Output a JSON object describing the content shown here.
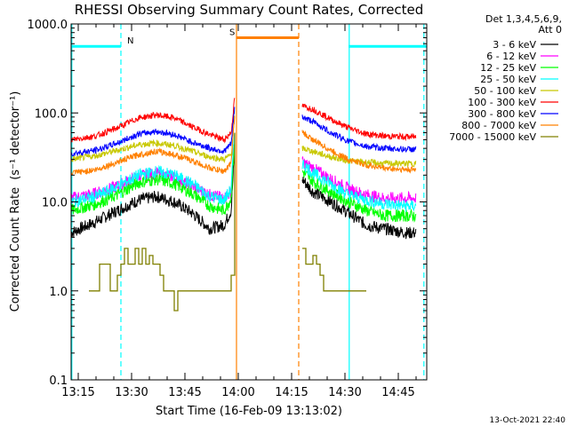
{
  "chart_data": {
    "type": "line",
    "title": "RHESSI Observing Summary Count Rates, Corrected",
    "xlabel": "Start Time (16-Feb-09 13:13:02)",
    "ylabel": "Corrected Count Rate",
    "ylabel_units": "(s⁻¹ detector⁻¹)",
    "yscale": "log",
    "ylim": [
      0.1,
      1000
    ],
    "yticks": [
      0.1,
      1,
      10,
      100,
      1000
    ],
    "ytick_labels": [
      "0.1",
      "1.0",
      "10.0",
      "100.0",
      "1000.0"
    ],
    "xlim_min": [
      793,
      893
    ],
    "xticks_min": [
      795,
      810,
      825,
      840,
      855,
      870,
      885
    ],
    "xtick_labels": [
      "13:15",
      "13:30",
      "13:45",
      "14:00",
      "14:15",
      "14:30",
      "14:45"
    ],
    "legend_header": [
      "Det 1,3,4,5,6,9,",
      "Att 0"
    ],
    "series": [
      {
        "name": "3 - 6 keV",
        "color": "#000000",
        "before": [
          [
            793,
            4.5
          ],
          [
            800,
            6
          ],
          [
            806,
            8
          ],
          [
            812,
            10.5
          ],
          [
            817,
            11.5
          ],
          [
            822,
            10
          ],
          [
            827,
            7.5
          ],
          [
            832,
            5
          ],
          [
            836,
            5.5
          ],
          [
            838,
            8
          ],
          [
            839,
            40
          ]
        ],
        "after": [
          [
            858,
            18
          ],
          [
            861,
            13
          ],
          [
            866,
            10
          ],
          [
            871,
            7.5
          ],
          [
            876,
            5.5
          ],
          [
            881,
            5
          ],
          [
            887,
            4.5
          ],
          [
            890,
            4.5
          ]
        ]
      },
      {
        "name": "6 - 12 keV",
        "color": "#ff00ff",
        "before": [
          [
            793,
            11
          ],
          [
            800,
            12.5
          ],
          [
            806,
            15
          ],
          [
            812,
            19.5
          ],
          [
            817,
            21
          ],
          [
            822,
            19
          ],
          [
            827,
            15
          ],
          [
            832,
            12
          ],
          [
            836,
            11
          ],
          [
            838,
            13
          ],
          [
            839,
            60
          ]
        ],
        "after": [
          [
            858,
            28
          ],
          [
            861,
            24
          ],
          [
            866,
            18
          ],
          [
            871,
            14
          ],
          [
            876,
            12
          ],
          [
            881,
            11
          ],
          [
            887,
            11
          ],
          [
            890,
            11
          ]
        ]
      },
      {
        "name": "12 - 25 keV",
        "color": "#00ff00",
        "before": [
          [
            793,
            8
          ],
          [
            800,
            9.5
          ],
          [
            806,
            12
          ],
          [
            812,
            16.5
          ],
          [
            817,
            18
          ],
          [
            822,
            16
          ],
          [
            827,
            12.5
          ],
          [
            832,
            9
          ],
          [
            836,
            8
          ],
          [
            838,
            11
          ],
          [
            839,
            55
          ]
        ],
        "after": [
          [
            858,
            22
          ],
          [
            861,
            17
          ],
          [
            866,
            13
          ],
          [
            871,
            10
          ],
          [
            876,
            8
          ],
          [
            881,
            7
          ],
          [
            887,
            7
          ],
          [
            890,
            7
          ]
        ]
      },
      {
        "name": "25 - 50 keV",
        "color": "#00ffff",
        "before": [
          [
            793,
            10
          ],
          [
            800,
            11.5
          ],
          [
            806,
            15
          ],
          [
            812,
            20
          ],
          [
            817,
            22
          ],
          [
            822,
            20
          ],
          [
            827,
            16
          ],
          [
            832,
            11.5
          ],
          [
            836,
            10.5
          ],
          [
            838,
            14
          ],
          [
            839,
            70
          ]
        ],
        "after": [
          [
            858,
            27
          ],
          [
            861,
            21
          ],
          [
            866,
            16
          ],
          [
            871,
            12
          ],
          [
            876,
            10.5
          ],
          [
            881,
            9.5
          ],
          [
            887,
            9
          ],
          [
            890,
            9
          ]
        ]
      },
      {
        "name": "50 - 100 keV",
        "color": "#c8c800",
        "before": [
          [
            793,
            30
          ],
          [
            800,
            33
          ],
          [
            806,
            38
          ],
          [
            812,
            44
          ],
          [
            817,
            46
          ],
          [
            822,
            43
          ],
          [
            827,
            37
          ],
          [
            832,
            32
          ],
          [
            836,
            30
          ],
          [
            838,
            34
          ],
          [
            839,
            90
          ]
        ],
        "after": [
          [
            858,
            40
          ],
          [
            861,
            37
          ],
          [
            866,
            32
          ],
          [
            871,
            29
          ],
          [
            876,
            28
          ],
          [
            881,
            27
          ],
          [
            887,
            27
          ],
          [
            890,
            27
          ]
        ]
      },
      {
        "name": "100 - 300 keV",
        "color": "#ff0000",
        "before": [
          [
            793,
            50
          ],
          [
            800,
            55
          ],
          [
            806,
            68
          ],
          [
            812,
            88
          ],
          [
            817,
            95
          ],
          [
            822,
            88
          ],
          [
            827,
            70
          ],
          [
            832,
            57
          ],
          [
            836,
            50
          ],
          [
            838,
            60
          ],
          [
            839,
            150
          ]
        ],
        "after": [
          [
            858,
            120
          ],
          [
            861,
            110
          ],
          [
            866,
            85
          ],
          [
            871,
            68
          ],
          [
            876,
            58
          ],
          [
            881,
            55
          ],
          [
            887,
            54
          ],
          [
            890,
            54
          ]
        ]
      },
      {
        "name": "300 - 800 keV",
        "color": "#0000ff",
        "before": [
          [
            793,
            35
          ],
          [
            800,
            38
          ],
          [
            806,
            46
          ],
          [
            812,
            58
          ],
          [
            817,
            62
          ],
          [
            822,
            57
          ],
          [
            827,
            47
          ],
          [
            832,
            40
          ],
          [
            836,
            37
          ],
          [
            838,
            45
          ],
          [
            839,
            120
          ]
        ],
        "after": [
          [
            858,
            90
          ],
          [
            861,
            80
          ],
          [
            866,
            60
          ],
          [
            871,
            48
          ],
          [
            876,
            42
          ],
          [
            881,
            40
          ],
          [
            887,
            39
          ],
          [
            890,
            39
          ]
        ]
      },
      {
        "name": "800 - 7000 keV",
        "color": "#ff8000",
        "before": [
          [
            793,
            21
          ],
          [
            800,
            23
          ],
          [
            806,
            28
          ],
          [
            812,
            34
          ],
          [
            817,
            37
          ],
          [
            822,
            34
          ],
          [
            827,
            29
          ],
          [
            832,
            24
          ],
          [
            836,
            22
          ],
          [
            838,
            27
          ],
          [
            839,
            100
          ]
        ],
        "after": [
          [
            858,
            60
          ],
          [
            861,
            50
          ],
          [
            866,
            38
          ],
          [
            871,
            30
          ],
          [
            876,
            26
          ],
          [
            881,
            24
          ],
          [
            887,
            23
          ],
          [
            890,
            23
          ]
        ]
      },
      {
        "name": "7000 - 15000 keV",
        "color": "#808000",
        "before": [
          [
            798,
            1
          ],
          [
            800,
            1
          ],
          [
            801,
            2
          ],
          [
            803,
            2
          ],
          [
            804,
            1
          ],
          [
            806,
            1.5
          ],
          [
            807,
            2
          ],
          [
            808,
            3
          ],
          [
            809,
            2
          ],
          [
            811,
            3
          ],
          [
            812,
            2
          ],
          [
            813,
            3
          ],
          [
            814,
            2
          ],
          [
            815,
            2.5
          ],
          [
            816,
            2
          ],
          [
            818,
            1.5
          ],
          [
            819,
            1
          ],
          [
            821,
            1
          ],
          [
            822,
            0.6
          ],
          [
            823,
            1
          ],
          [
            838,
            1.5
          ],
          [
            839,
            60
          ]
        ],
        "after": [
          [
            858,
            3
          ],
          [
            859,
            2
          ],
          [
            861,
            2.5
          ],
          [
            862,
            2
          ],
          [
            863,
            1.5
          ],
          [
            864,
            1
          ],
          [
            866,
            1
          ],
          [
            871,
            1
          ],
          [
            876,
            1
          ]
        ]
      }
    ],
    "bars": [
      {
        "label": "N",
        "color": "#00ffff",
        "start": 793,
        "end": 807,
        "level": 560
      },
      {
        "label": "",
        "color": "#00ffff",
        "start": 871,
        "end": 893,
        "level": 560
      },
      {
        "label": "S",
        "color": "#ff8000",
        "start": 839.5,
        "end": 857,
        "level": 700
      }
    ],
    "vlines_solid": [
      {
        "x": 793.2,
        "color": "#00ffff"
      },
      {
        "x": 839.5,
        "color": "#ff8000"
      },
      {
        "x": 871.2,
        "color": "#00ffff"
      }
    ],
    "vlines_dashed": [
      {
        "x": 807,
        "color": "#00ffff"
      },
      {
        "x": 857,
        "color": "#ff8000"
      },
      {
        "x": 892.2,
        "color": "#00ffff"
      }
    ]
  },
  "footer": {
    "date": "13-Oct-2021 22:40"
  }
}
